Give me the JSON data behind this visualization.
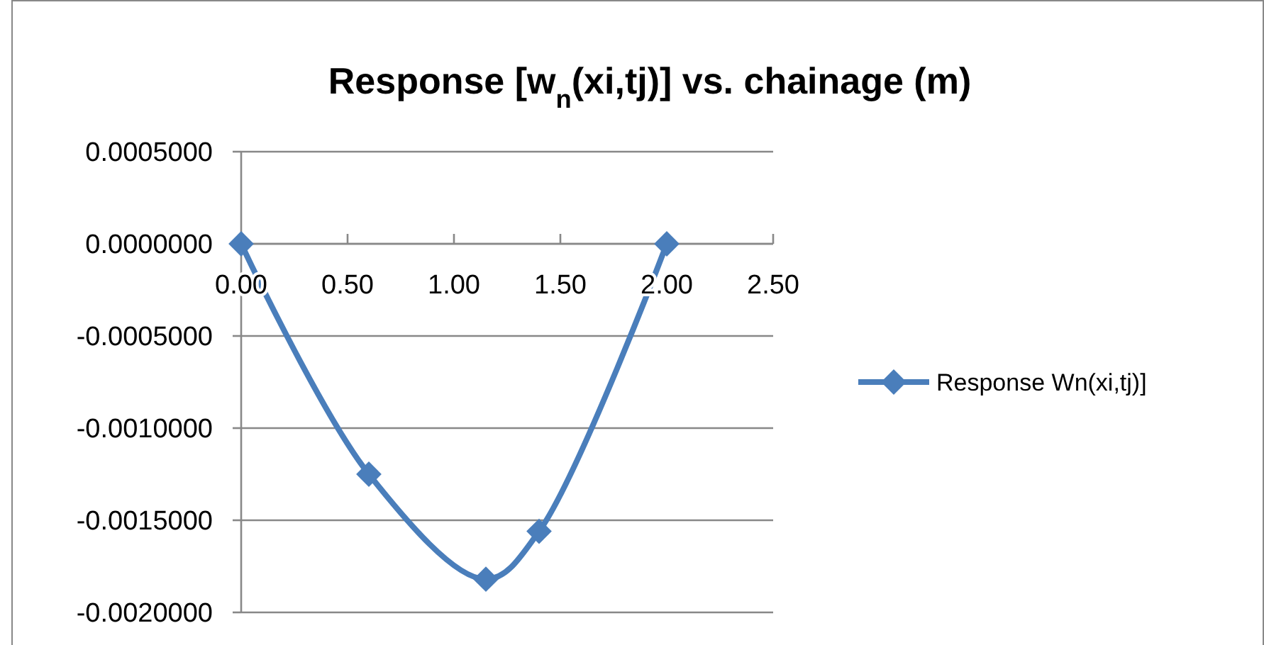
{
  "chart_data": {
    "type": "line",
    "title": "Response [w$_{n}$(xi,tj)] vs. chainage (m)",
    "x": [
      0,
      0.6,
      1.15,
      1.4,
      2.0
    ],
    "series": [
      {
        "name": "Response Wn(xi,tj)]",
        "color": "#4a7ebb",
        "values": [
          0,
          -0.00125,
          -0.00182,
          -0.00156,
          0
        ]
      }
    ],
    "xlim": [
      0,
      2.5
    ],
    "xticks": [
      {
        "value": 0,
        "label": "0.00"
      },
      {
        "value": 0.5,
        "label": "0.50"
      },
      {
        "value": 1,
        "label": "1.00"
      },
      {
        "value": 1.5,
        "label": "1.50"
      },
      {
        "value": 2,
        "label": "2.00"
      },
      {
        "value": 2.5,
        "label": "2.50"
      }
    ],
    "ylim": [
      -0.002,
      0.0005
    ],
    "yticks": [
      {
        "value": 0.0005,
        "label": "0.0005000"
      },
      {
        "value": 0,
        "label": "0.0000000"
      },
      {
        "value": -0.0005,
        "label": "-0.0005000"
      },
      {
        "value": -0.001,
        "label": "-0.0010000"
      },
      {
        "value": -0.0015,
        "label": "-0.0015000"
      },
      {
        "value": -0.002,
        "label": "-0.0020000"
      }
    ],
    "grid": "y",
    "legend": "right",
    "marker": "diamond",
    "line_style": "solid"
  }
}
